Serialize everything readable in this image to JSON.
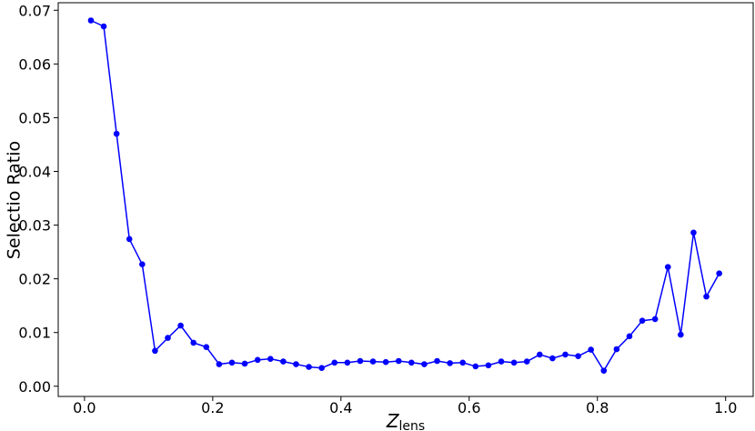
{
  "chart_data": {
    "type": "line",
    "ylabel": "Selectio Ratio",
    "xlabel": {
      "main": "Z",
      "sub": "lens"
    },
    "x": [
      0.01,
      0.03,
      0.05,
      0.07,
      0.09,
      0.11,
      0.13,
      0.15,
      0.17,
      0.19,
      0.21,
      0.23,
      0.25,
      0.27,
      0.29,
      0.31,
      0.33,
      0.35,
      0.37,
      0.39,
      0.41,
      0.43,
      0.45,
      0.47,
      0.49,
      0.51,
      0.53,
      0.55,
      0.57,
      0.59,
      0.61,
      0.63,
      0.65,
      0.67,
      0.69,
      0.71,
      0.73,
      0.75,
      0.77,
      0.79,
      0.81,
      0.83,
      0.85,
      0.87,
      0.89,
      0.91,
      0.93,
      0.95,
      0.97,
      0.99
    ],
    "series": [
      {
        "color": "#0000ff",
        "marker": true,
        "values": [
          0.0681,
          0.067,
          0.047,
          0.0274,
          0.0227,
          0.0066,
          0.009,
          0.0113,
          0.0081,
          0.0073,
          0.0041,
          0.0044,
          0.0042,
          0.0049,
          0.0051,
          0.0046,
          0.0041,
          0.0036,
          0.0034,
          0.0044,
          0.0044,
          0.0047,
          0.0046,
          0.0045,
          0.0047,
          0.0044,
          0.0041,
          0.0047,
          0.0043,
          0.0044,
          0.0037,
          0.0039,
          0.0046,
          0.0044,
          0.0046,
          0.0059,
          0.0052,
          0.0059,
          0.0056,
          0.0068,
          0.0029,
          0.0069,
          0.0093,
          0.0122,
          0.0125,
          0.0222,
          0.0096,
          0.0286,
          0.0167,
          0.021
        ]
      }
    ],
    "xlim": [
      -0.041,
      1.043
    ],
    "ylim": [
      -0.0019,
      0.0714
    ],
    "xticks": [
      {
        "value": 0,
        "label": "0.0"
      },
      0.2,
      0.4,
      0.6,
      0.8,
      {
        "value": 1,
        "label": "1.0"
      }
    ],
    "yticks": [
      {
        "value": 0,
        "label": "0.00"
      },
      0.01,
      0.02,
      0.03,
      0.04,
      0.05,
      0.06,
      0.07
    ]
  }
}
